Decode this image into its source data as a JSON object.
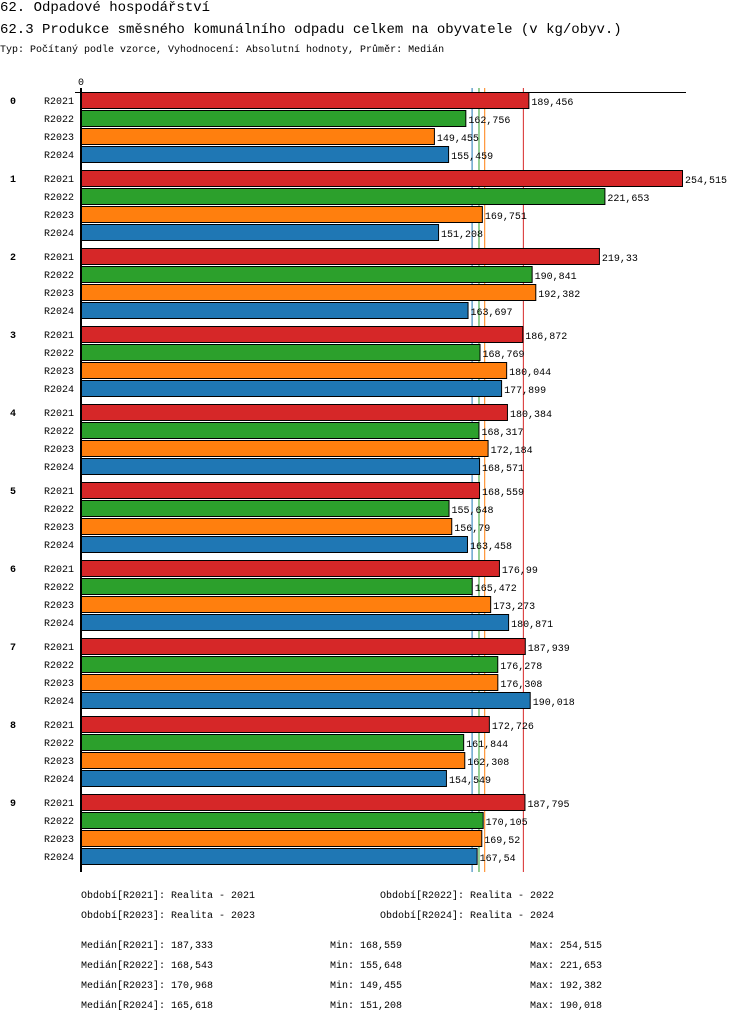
{
  "header": {
    "title": "62. Odpadové hospodářství",
    "subtitle": "62.3 Produkce směsného komunálního odpadu celkem na obyvatele (v kg/obyv.)",
    "meta": "Typ: Počítaný podle vzorce, Vyhodnocení: Absolutní hodnoty, Průměr: Medián"
  },
  "chart_data": {
    "type": "bar",
    "orientation": "horizontal",
    "title": "62.3 Produkce směsného komunálního odpadu celkem na obyvatele (v kg/obyv.)",
    "x_tick_labels": [
      "0"
    ],
    "xlim": [
      0,
      254.515
    ],
    "categories": [
      "0",
      "1",
      "2",
      "3",
      "4",
      "5",
      "6",
      "7",
      "8",
      "9"
    ],
    "series": [
      {
        "name": "R2021",
        "color": "#d62728",
        "values": [
          189.456,
          254.515,
          219.33,
          186.872,
          180.384,
          168.559,
          176.99,
          187.939,
          172.726,
          187.795
        ]
      },
      {
        "name": "R2022",
        "color": "#2ca02c",
        "values": [
          162.756,
          221.653,
          190.841,
          168.769,
          168.317,
          155.648,
          165.472,
          176.278,
          161.844,
          170.105
        ]
      },
      {
        "name": "R2023",
        "color": "#ff7f0e",
        "values": [
          149.455,
          169.751,
          192.382,
          180.044,
          172.184,
          156.79,
          173.273,
          176.308,
          162.308,
          169.52
        ]
      },
      {
        "name": "R2024",
        "color": "#1f77b4",
        "values": [
          155.459,
          151.208,
          163.697,
          177.899,
          168.571,
          163.458,
          180.871,
          190.018,
          154.549,
          167.54
        ]
      }
    ],
    "median_lines": true,
    "legend": [
      "Období[R2021]: Realita - 2021",
      "Období[R2022]: Realita - 2022",
      "Období[R2023]: Realita - 2023",
      "Období[R2024]: Realita - 2024"
    ],
    "stats": [
      {
        "median": "Medián[R2021]: 187,333",
        "min": "Min: 168,559",
        "max": "Max: 254,515",
        "median_value": 187.333
      },
      {
        "median": "Medián[R2022]: 168,543",
        "min": "Min: 155,648",
        "max": "Max: 221,653",
        "median_value": 168.543
      },
      {
        "median": "Medián[R2023]: 170,968",
        "min": "Min: 149,455",
        "max": "Max: 192,382",
        "median_value": 170.968
      },
      {
        "median": "Medián[R2024]: 165,618",
        "min": "Min: 151,208",
        "max": "Max: 190,018",
        "median_value": 165.618
      }
    ]
  }
}
